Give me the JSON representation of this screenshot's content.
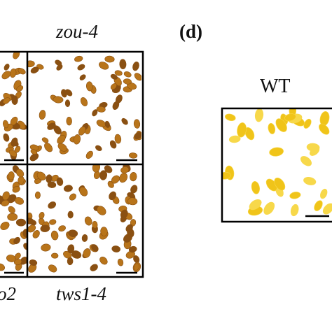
{
  "labels": {
    "top_right_panel": "zou-4",
    "bottom_left_panel_partial": "o2",
    "bottom_right_panel": "tws1-4",
    "panel_letter": "(d)",
    "wt_label": "WT"
  },
  "colors": {
    "mutant_seed": "#b8741a",
    "mutant_seed_dark": "#8a5012",
    "wt_seed": "#f0c419",
    "wt_seed_light": "#f7d84a",
    "frame": "#000000",
    "background": "#ffffff"
  }
}
